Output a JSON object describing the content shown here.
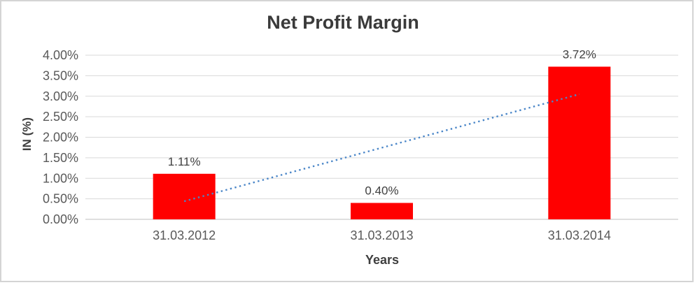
{
  "frame": {
    "border_color": "#d4d4d4",
    "background": "#ffffff"
  },
  "chart_data": {
    "type": "bar",
    "title": "Net Profit Margin",
    "xlabel": "Years",
    "ylabel": "IN (%)",
    "categories": [
      "31.03.2012",
      "31.03.2013",
      "31.03.2014"
    ],
    "values": [
      1.11,
      0.4,
      3.72
    ],
    "value_labels": [
      "1.11%",
      "0.40%",
      "3.72%"
    ],
    "ylim": [
      0,
      4
    ],
    "ytick_step": 0.5,
    "ytick_labels": [
      "0.00%",
      "0.50%",
      "1.00%",
      "1.50%",
      "2.00%",
      "2.50%",
      "3.00%",
      "3.50%",
      "4.00%"
    ],
    "grid": "horizontal",
    "legend": "none",
    "bar_color": "#ff0000",
    "trendline": {
      "type": "linear",
      "style": "dotted",
      "color": "#4a86c8",
      "start_value": 0.44,
      "end_value": 3.05
    },
    "colors": {
      "gridline": "#d9d9d9",
      "axis_line": "#bfbfbf",
      "tick_text": "#595959",
      "label_text": "#404040",
      "title_text": "#3a3a3a"
    }
  }
}
